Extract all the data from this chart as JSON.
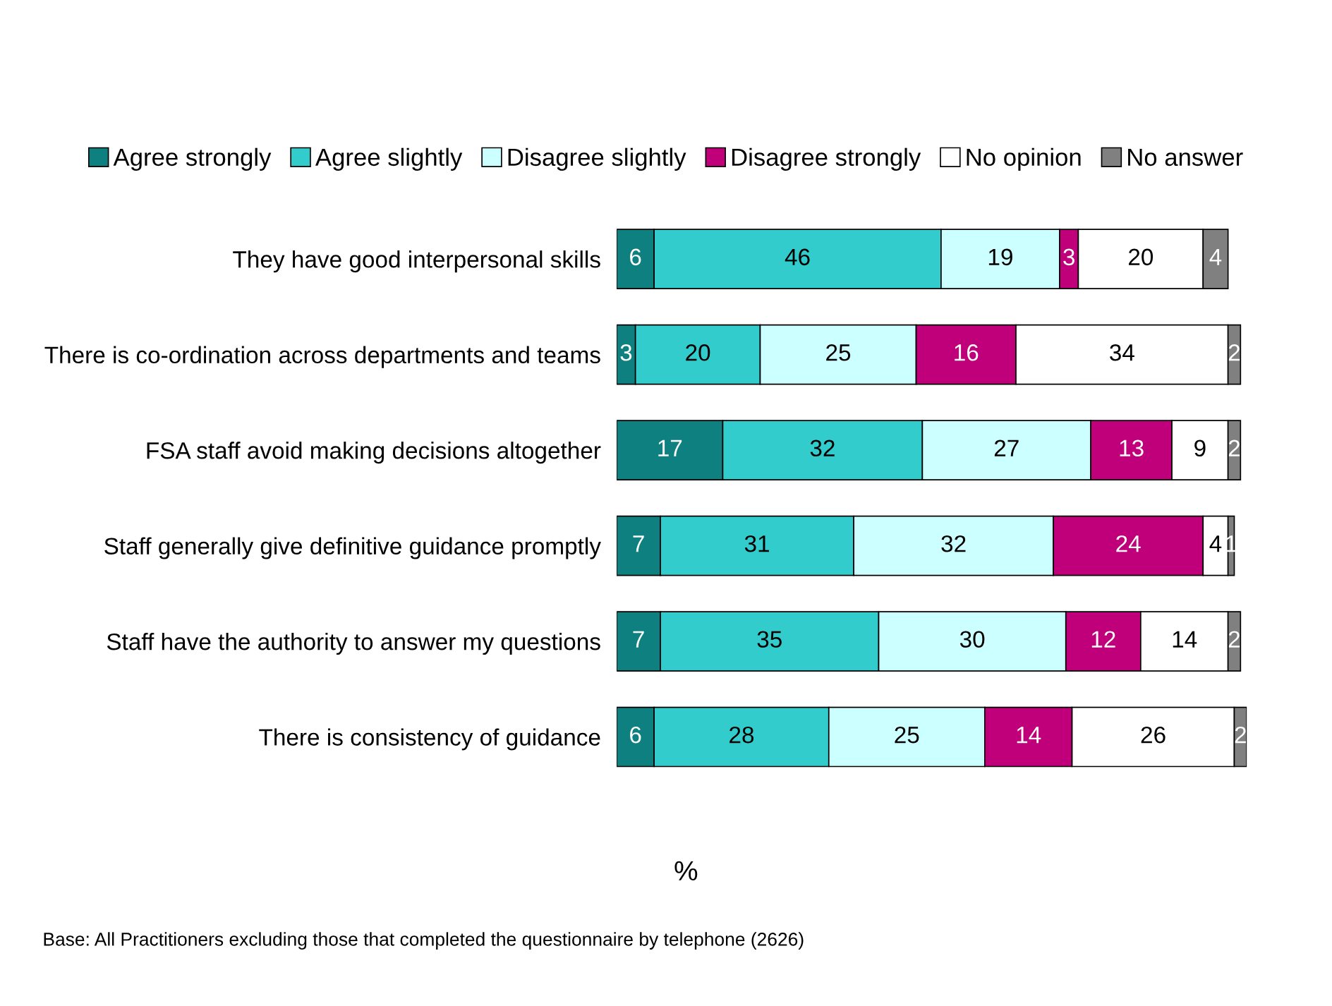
{
  "chart_data": {
    "type": "bar",
    "orientation": "horizontal",
    "stacked": true,
    "data_labels": true,
    "legend": "top",
    "grid": false,
    "xlabel": "%",
    "categories": [
      "They have good interpersonal skills",
      "There is co-ordination across departments and teams",
      "FSA staff avoid making decisions altogether",
      "Staff generally give definitive guidance promptly",
      "Staff have the authority to answer my questions",
      "There is consistency of guidance"
    ],
    "series": [
      {
        "name": "Agree strongly",
        "color": "#0e8080",
        "values": [
          6,
          3,
          17,
          7,
          7,
          6
        ]
      },
      {
        "name": "Agree slightly",
        "color": "#33cccc",
        "values": [
          46,
          20,
          32,
          31,
          35,
          28
        ]
      },
      {
        "name": "Disagree slightly",
        "color": "#ccffff",
        "values": [
          19,
          25,
          27,
          32,
          30,
          25
        ]
      },
      {
        "name": "Disagree strongly",
        "color": "#c0007a",
        "values": [
          3,
          16,
          13,
          24,
          12,
          14
        ]
      },
      {
        "name": "No opinion",
        "color": "#ffffff",
        "values": [
          20,
          34,
          9,
          4,
          14,
          26
        ]
      },
      {
        "name": "No answer",
        "color": "#808080",
        "values": [
          4,
          2,
          2,
          1,
          2,
          2
        ]
      }
    ],
    "annotations": [
      "Base: All Practitioners excluding those that completed the questionnaire by telephone (2626)"
    ]
  }
}
